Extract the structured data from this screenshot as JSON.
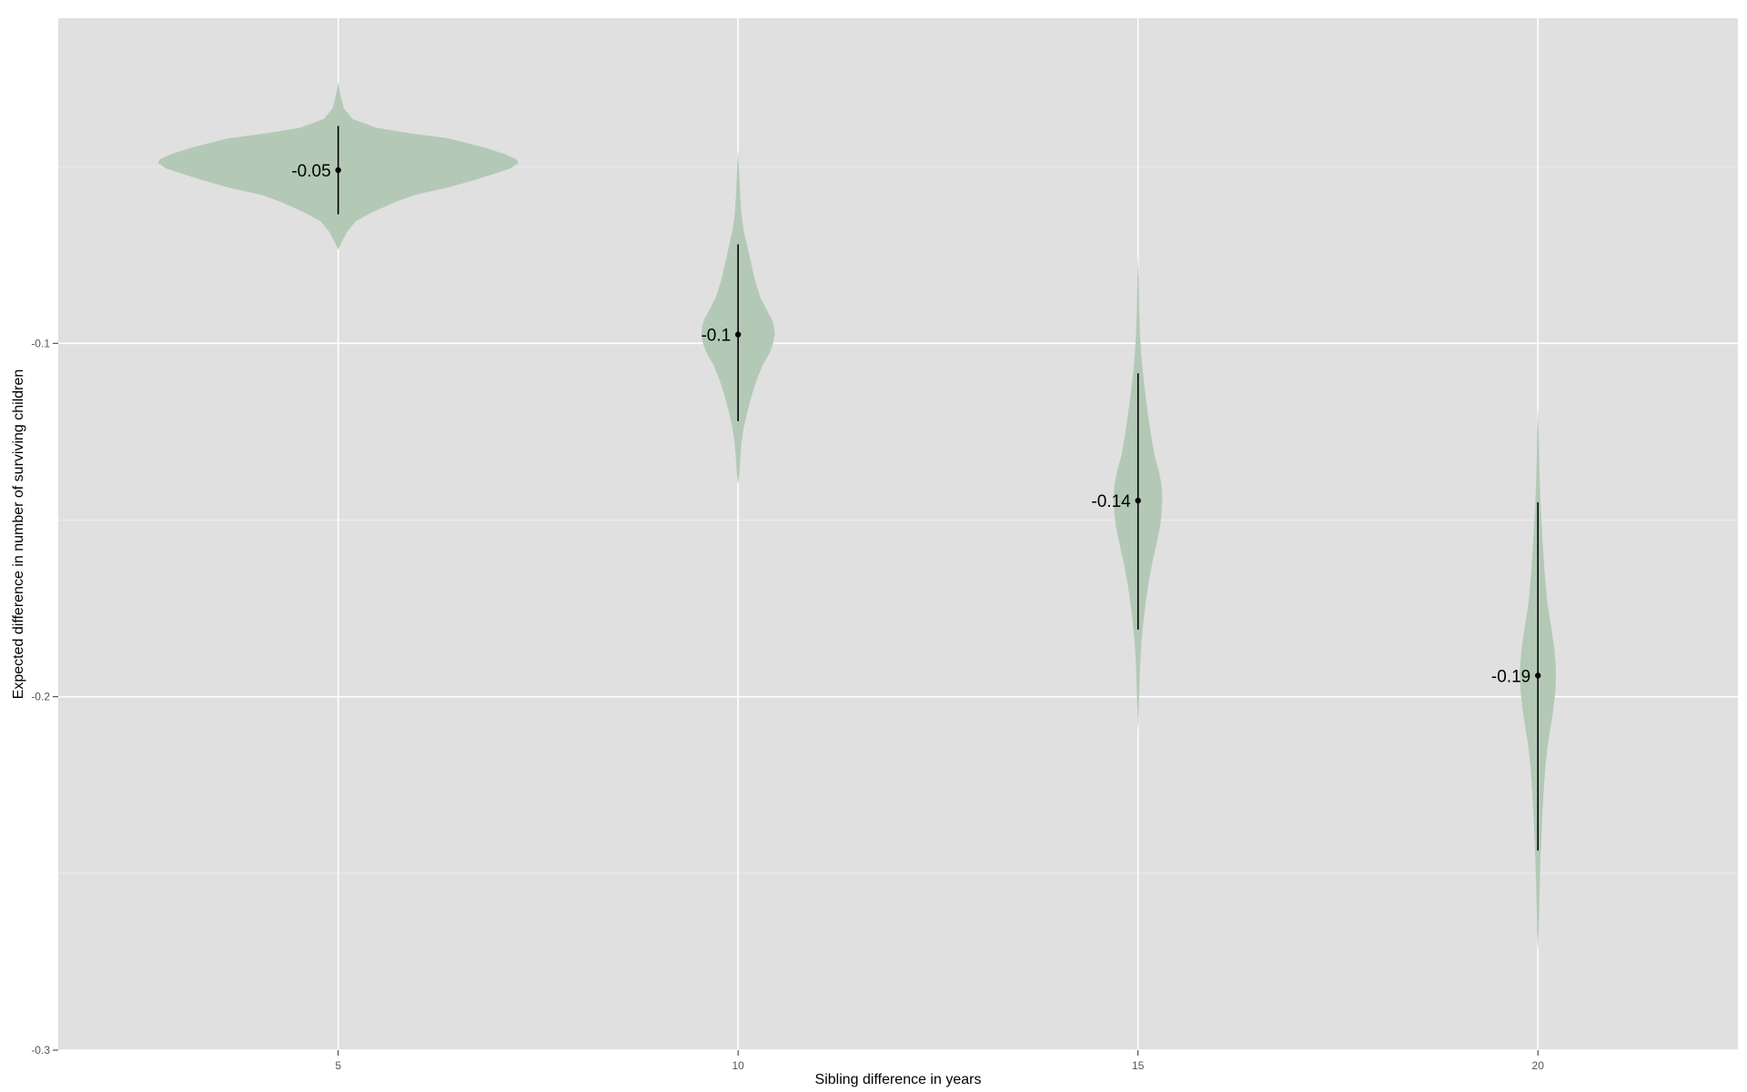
{
  "chart_data": {
    "type": "violin",
    "title": "",
    "xlabel": "Sibling difference in years",
    "ylabel": "Expected difference in number of surviving children",
    "x_ticks": [
      5,
      10,
      15,
      20
    ],
    "y_ticks": [
      -0.1,
      -0.2,
      -0.3
    ],
    "y_tick_labels": [
      "-0.1",
      "-0.2",
      "-0.3"
    ],
    "xlim": [
      1.5,
      22.5
    ],
    "ylim": [
      -0.3,
      -0.008
    ],
    "grid": true,
    "colors": {
      "panel": "#e0e0e0",
      "grid": "#ffffff",
      "violin": "#b3c9b6",
      "mark": "#000000"
    },
    "violins": [
      {
        "x": 5,
        "mean": -0.051,
        "lower": -0.0635,
        "upper": -0.0385,
        "label": "-0.05",
        "density": [
          [
            -0.026,
            0.0
          ],
          [
            -0.029,
            0.1
          ],
          [
            -0.0335,
            0.35
          ],
          [
            -0.0365,
            0.9
          ],
          [
            -0.039,
            2.4
          ],
          [
            -0.0405,
            4.4
          ],
          [
            -0.042,
            6.9
          ],
          [
            -0.0445,
            9.1
          ],
          [
            -0.0465,
            10.5
          ],
          [
            -0.048,
            11.2
          ],
          [
            -0.049,
            11.3
          ],
          [
            -0.0505,
            10.8
          ],
          [
            -0.052,
            9.8
          ],
          [
            -0.054,
            8.4
          ],
          [
            -0.056,
            6.8
          ],
          [
            -0.058,
            4.8
          ],
          [
            -0.06,
            3.6
          ],
          [
            -0.063,
            2.1
          ],
          [
            -0.0655,
            1.1
          ],
          [
            -0.0685,
            0.55
          ],
          [
            -0.0715,
            0.2
          ],
          [
            -0.0735,
            0.0
          ]
        ]
      },
      {
        "x": 10,
        "mean": -0.0975,
        "lower": -0.122,
        "upper": -0.072,
        "label": "-0.1",
        "density": [
          [
            -0.045,
            0.0
          ],
          [
            -0.05,
            0.05
          ],
          [
            -0.057,
            0.12
          ],
          [
            -0.063,
            0.2
          ],
          [
            -0.068,
            0.35
          ],
          [
            -0.072,
            0.55
          ],
          [
            -0.077,
            0.8
          ],
          [
            -0.082,
            1.05
          ],
          [
            -0.087,
            1.4
          ],
          [
            -0.091,
            1.85
          ],
          [
            -0.093,
            2.1
          ],
          [
            -0.095,
            2.25
          ],
          [
            -0.0975,
            2.3
          ],
          [
            -0.1,
            2.2
          ],
          [
            -0.103,
            1.95
          ],
          [
            -0.106,
            1.55
          ],
          [
            -0.11,
            1.2
          ],
          [
            -0.114,
            0.9
          ],
          [
            -0.119,
            0.6
          ],
          [
            -0.124,
            0.35
          ],
          [
            -0.128,
            0.22
          ],
          [
            -0.132,
            0.15
          ],
          [
            -0.136,
            0.09
          ],
          [
            -0.14,
            0.0
          ]
        ]
      },
      {
        "x": 15,
        "mean": -0.1445,
        "lower": -0.181,
        "upper": -0.1085,
        "label": "-0.14",
        "density": [
          [
            -0.075,
            0.0
          ],
          [
            -0.082,
            0.04
          ],
          [
            -0.09,
            0.07
          ],
          [
            -0.097,
            0.12
          ],
          [
            -0.103,
            0.2
          ],
          [
            -0.108,
            0.3
          ],
          [
            -0.115,
            0.48
          ],
          [
            -0.121,
            0.65
          ],
          [
            -0.127,
            0.85
          ],
          [
            -0.132,
            1.05
          ],
          [
            -0.136,
            1.3
          ],
          [
            -0.14,
            1.48
          ],
          [
            -0.144,
            1.53
          ],
          [
            -0.148,
            1.48
          ],
          [
            -0.152,
            1.38
          ],
          [
            -0.156,
            1.2
          ],
          [
            -0.162,
            0.9
          ],
          [
            -0.168,
            0.65
          ],
          [
            -0.172,
            0.52
          ],
          [
            -0.178,
            0.36
          ],
          [
            -0.184,
            0.22
          ],
          [
            -0.19,
            0.14
          ],
          [
            -0.198,
            0.08
          ],
          [
            -0.204,
            0.04
          ],
          [
            -0.21,
            0.0
          ]
        ]
      },
      {
        "x": 20,
        "mean": -0.194,
        "lower": -0.2435,
        "upper": -0.145,
        "label": "-0.19",
        "density": [
          [
            -0.118,
            0.0
          ],
          [
            -0.126,
            0.05
          ],
          [
            -0.135,
            0.09
          ],
          [
            -0.145,
            0.16
          ],
          [
            -0.155,
            0.28
          ],
          [
            -0.165,
            0.42
          ],
          [
            -0.173,
            0.58
          ],
          [
            -0.18,
            0.82
          ],
          [
            -0.186,
            1.02
          ],
          [
            -0.192,
            1.12
          ],
          [
            -0.196,
            1.12
          ],
          [
            -0.2,
            1.06
          ],
          [
            -0.204,
            0.95
          ],
          [
            -0.209,
            0.78
          ],
          [
            -0.214,
            0.6
          ],
          [
            -0.22,
            0.46
          ],
          [
            -0.228,
            0.34
          ],
          [
            -0.237,
            0.24
          ],
          [
            -0.246,
            0.16
          ],
          [
            -0.256,
            0.1
          ],
          [
            -0.266,
            0.05
          ],
          [
            -0.272,
            0.0
          ]
        ]
      }
    ]
  }
}
